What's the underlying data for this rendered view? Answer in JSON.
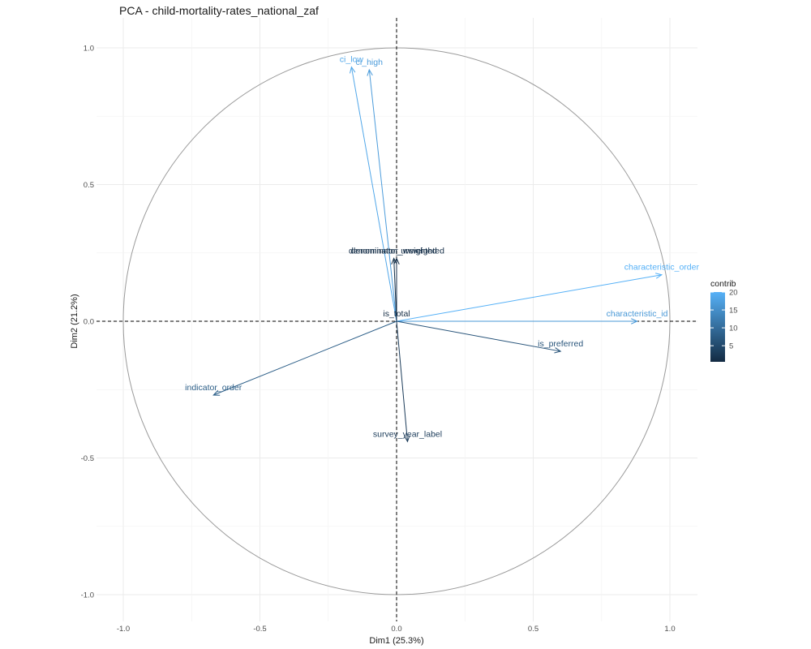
{
  "chart_data": {
    "type": "scatter",
    "subtype": "pca-variable-correlation-circle",
    "title": "PCA - child-mortality-rates_national_zaf",
    "xlabel": "Dim1 (25.3%)",
    "ylabel": "Dim2 (21.2%)",
    "xlim": [
      -1.1,
      1.1
    ],
    "ylim": [
      -1.1,
      1.1
    ],
    "x_ticks": [
      -1.0,
      -0.5,
      0.0,
      0.5,
      1.0
    ],
    "y_ticks": [
      -1.0,
      -0.5,
      0.0,
      0.5,
      1.0
    ],
    "x_tick_labels": [
      "-1.0",
      "-0.5",
      "0.0",
      "0.5",
      "1.0"
    ],
    "y_tick_labels": [
      "-1.0",
      "-0.5",
      "0.0",
      "0.5",
      "1.0"
    ],
    "grid": true,
    "unit_circle": true,
    "legend": {
      "title": "contrib",
      "position": "right",
      "min": 0.5,
      "max": 20,
      "ticks": [
        5,
        10,
        15,
        20
      ],
      "tick_labels": [
        "5",
        "10",
        "15",
        "20"
      ],
      "low_color": "#132b43",
      "high_color": "#56b1f7"
    },
    "variables": [
      {
        "name": "ci_low",
        "x": -0.165,
        "y": 0.93,
        "contrib": 18.5
      },
      {
        "name": "ci_high",
        "x": -0.1,
        "y": 0.92,
        "contrib": 17.0
      },
      {
        "name": "denominator_weighted",
        "x": -0.01,
        "y": 0.23,
        "contrib": 1.2
      },
      {
        "name": "denominator_unweighted",
        "x": 0.0,
        "y": 0.23,
        "contrib": 1.0
      },
      {
        "name": "characteristic_order",
        "x": 0.97,
        "y": 0.17,
        "contrib": 20.0
      },
      {
        "name": "characteristic_id",
        "x": 0.88,
        "y": 0.0,
        "contrib": 16.5
      },
      {
        "name": "is_total",
        "x": 0.0,
        "y": 0.0,
        "contrib": 0.5
      },
      {
        "name": "is_preferred",
        "x": 0.6,
        "y": -0.11,
        "contrib": 6.5
      },
      {
        "name": "indicator_order",
        "x": -0.67,
        "y": -0.27,
        "contrib": 8.0
      },
      {
        "name": "survey_year_label",
        "x": 0.04,
        "y": -0.44,
        "contrib": 3.0
      }
    ]
  }
}
